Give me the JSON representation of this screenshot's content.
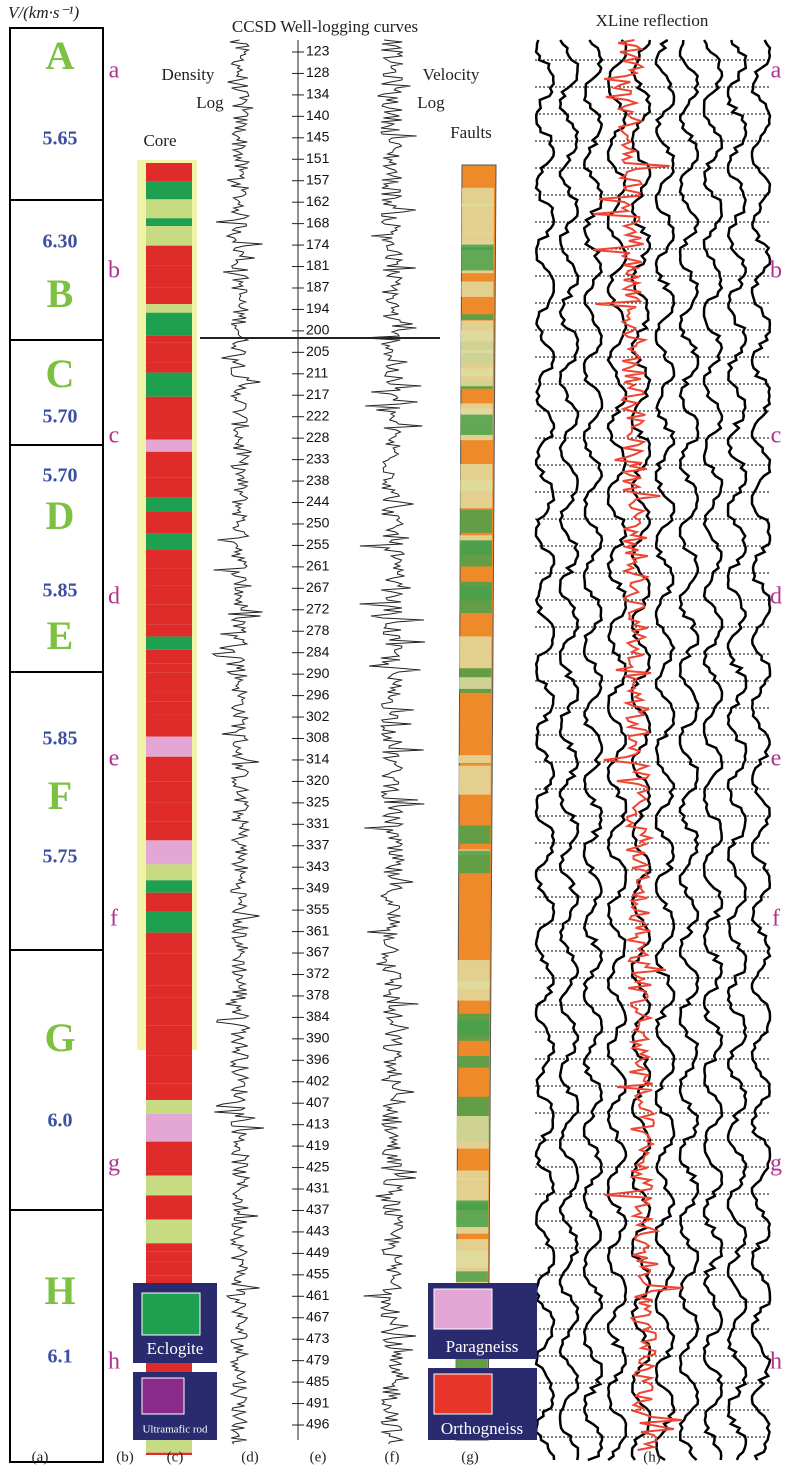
{
  "header": {
    "axis_unit": "V/(km·s⁻¹)",
    "title": "CCSD Well-logging curves",
    "right_title": "XLine reflection",
    "density": "Density",
    "density_log": "Log",
    "velocity": "Velocity",
    "velocity_log": "Log",
    "core": "Core",
    "faults": "Faults"
  },
  "zones": [
    {
      "texts": [
        {
          "t": "A",
          "k": "zl"
        },
        {
          "t": "5.65",
          "k": "zv"
        }
      ]
    },
    {
      "texts": [
        {
          "t": "6.30",
          "k": "zv"
        },
        {
          "t": "B",
          "k": "zl"
        }
      ]
    },
    {
      "texts": [
        {
          "t": "C",
          "k": "zl"
        },
        {
          "t": "5.70",
          "k": "zv"
        }
      ]
    },
    {
      "texts": [
        {
          "t": "5.70",
          "k": "zv"
        },
        {
          "t": "D",
          "k": "zl"
        },
        {
          "t": "5.85",
          "k": "zv"
        },
        {
          "t": "E",
          "k": "zl"
        }
      ]
    },
    {
      "texts": [
        {
          "t": "5.85",
          "k": "zv"
        },
        {
          "t": "F",
          "k": "zl"
        },
        {
          "t": "5.75",
          "k": "zv"
        }
      ]
    },
    {
      "texts": [
        {
          "t": "G",
          "k": "zl"
        },
        {
          "t": "6.0",
          "k": "zv"
        }
      ]
    },
    {
      "texts": [
        {
          "t": "H",
          "k": "zl"
        },
        {
          "t": "6.1",
          "k": "zv"
        }
      ]
    }
  ],
  "sections": [
    "a",
    "b",
    "c",
    "d",
    "e",
    "f",
    "g",
    "h"
  ],
  "depths": [
    "123",
    "128",
    "134",
    "140",
    "145",
    "151",
    "157",
    "162",
    "168",
    "174",
    "181",
    "187",
    "194",
    "200",
    "205",
    "211",
    "217",
    "222",
    "228",
    "233",
    "238",
    "244",
    "250",
    "255",
    "261",
    "267",
    "272",
    "278",
    "284",
    "290",
    "296",
    "302",
    "308",
    "314",
    "320",
    "325",
    "331",
    "337",
    "343",
    "349",
    "355",
    "361",
    "367",
    "372",
    "378",
    "384",
    "390",
    "396",
    "402",
    "407",
    "413",
    "419",
    "425",
    "431",
    "437",
    "443",
    "449",
    "455",
    "461",
    "467",
    "473",
    "479",
    "485",
    "491",
    "496"
  ],
  "legend": [
    "Eclogite",
    "Ultramafic rod",
    "Paragneiss",
    "Orthogneiss"
  ],
  "panels": [
    "(a)",
    "(b)",
    "(c)",
    "(d)",
    "(e)",
    "(f)",
    "(g)",
    "(h)"
  ]
}
